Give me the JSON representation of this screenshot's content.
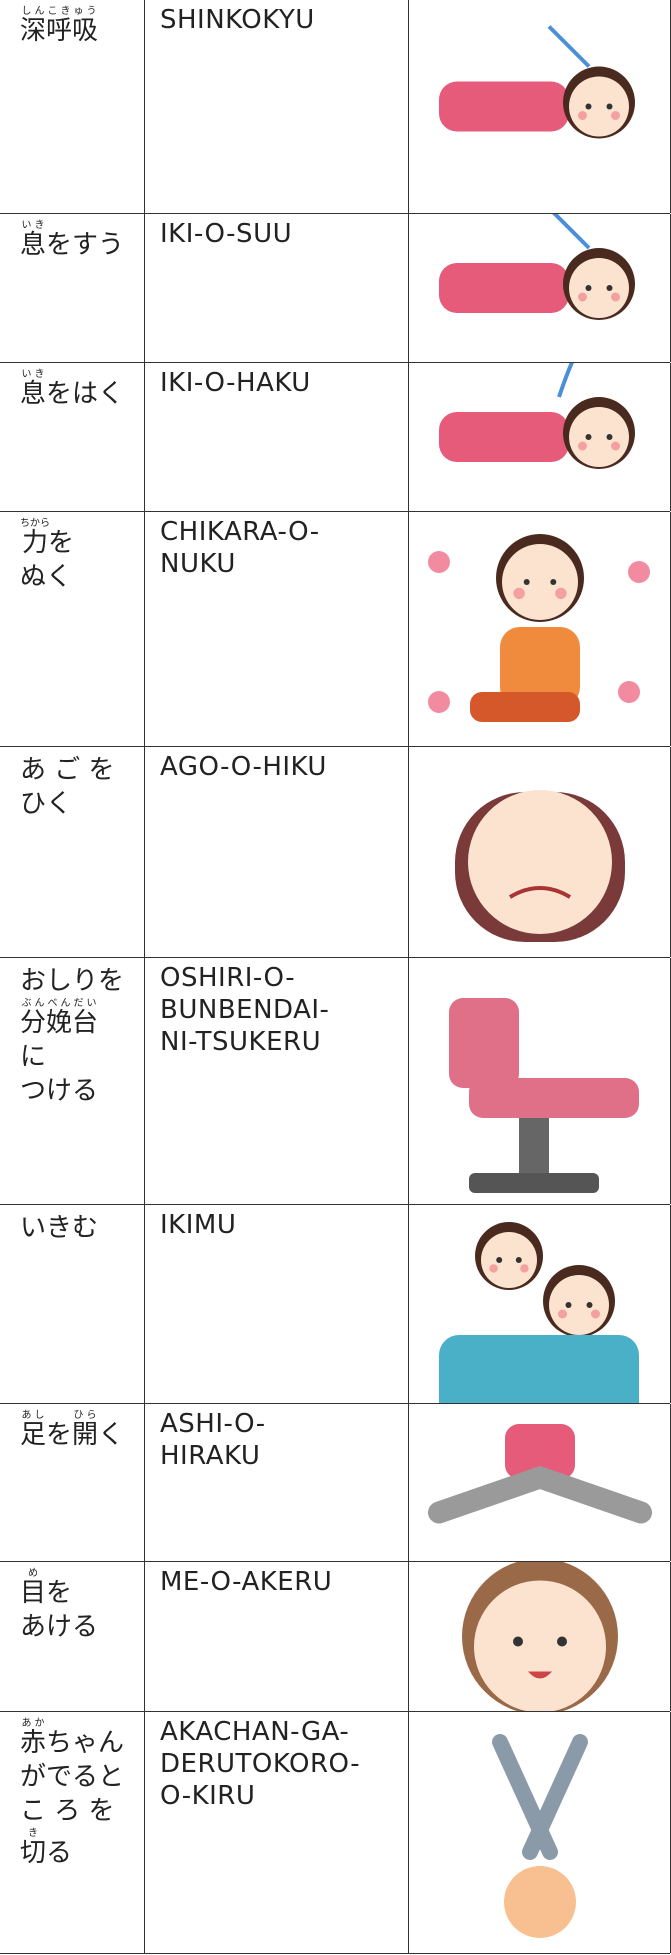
{
  "table": {
    "rows": [
      {
        "japanese": [
          [
            {
              "text": "深呼吸",
              "ruby": "しんこきゅう"
            }
          ]
        ],
        "romaji": [
          "SHINKOKYU"
        ]
      },
      {
        "japanese": [
          [
            {
              "text": "息",
              "ruby": "いき"
            },
            "をすう"
          ]
        ],
        "romaji": [
          "IKI-O-SUU"
        ]
      },
      {
        "japanese": [
          [
            {
              "text": "息",
              "ruby": "いき"
            },
            "をはく"
          ]
        ],
        "romaji": [
          "IKI-O-HAKU"
        ]
      },
      {
        "japanese": [
          [
            {
              "text": "力",
              "ruby": "ちから"
            },
            "を"
          ],
          [
            "ぬく"
          ]
        ],
        "romaji": [
          "CHIKARA-O-",
          "NUKU"
        ]
      },
      {
        "japanese": [
          [
            "あ ご を"
          ],
          [
            "ひく"
          ]
        ],
        "romaji": [
          "AGO-O-HIKU"
        ]
      },
      {
        "japanese": [
          [
            "おしりを"
          ],
          [
            {
              "text": "分娩台",
              "ruby": "ぶんべんだい"
            }
          ],
          [
            "に"
          ],
          [
            "つける"
          ]
        ],
        "romaji": [
          "OSHIRI-O-",
          "BUNBENDAI-",
          "NI-TSUKERU"
        ]
      },
      {
        "japanese": [
          [
            "いきむ"
          ]
        ],
        "romaji": [
          "IKIMU"
        ]
      },
      {
        "japanese": [
          [
            {
              "text": "足",
              "ruby": "あし"
            },
            "を",
            {
              "text": "開",
              "ruby": "ひら"
            },
            "く"
          ]
        ],
        "romaji": [
          "ASHI-O-",
          "HIRAKU"
        ]
      },
      {
        "japanese": [
          [
            {
              "text": "目",
              "ruby": "め"
            },
            "を"
          ],
          [
            "あける"
          ]
        ],
        "romaji": [
          "ME-O-AKERU"
        ]
      },
      {
        "japanese": [
          [
            {
              "text": "赤",
              "ruby": "あか"
            },
            "ちゃん"
          ],
          [
            "がでると"
          ],
          [
            "こ ろ を"
          ],
          [
            {
              "text": "切",
              "ruby": "き"
            },
            "る"
          ]
        ],
        "romaji": [
          "AKACHAN-GA-",
          "DERUTOKORO-",
          "O-KIRU"
        ]
      }
    ]
  }
}
